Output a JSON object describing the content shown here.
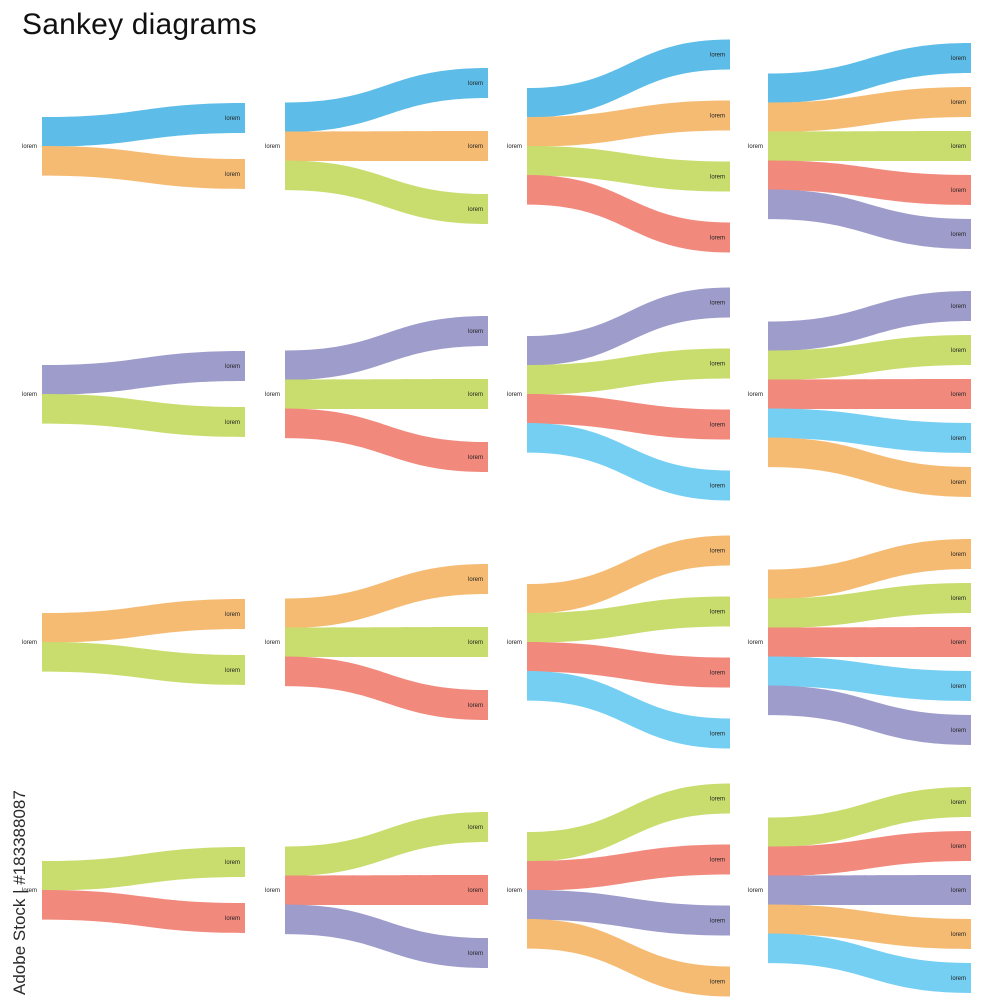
{
  "title": "Sankey diagrams",
  "watermark_text": "Adobe Stock | #183388087",
  "colors": {
    "blue": "#5dbde8",
    "orange": "#f6bb73",
    "green": "#c8dd6d",
    "red": "#f2897d",
    "purple": "#9d9ccb",
    "sky": "#74cff3"
  },
  "diagrams": [
    {
      "source_label": "lorem",
      "flows": [
        {
          "color": "blue",
          "label": "lorem"
        },
        {
          "color": "orange",
          "label": "lorem"
        }
      ]
    },
    {
      "source_label": "lorem",
      "flows": [
        {
          "color": "blue",
          "label": "lorem"
        },
        {
          "color": "orange",
          "label": "lorem"
        },
        {
          "color": "green",
          "label": "lorem"
        }
      ]
    },
    {
      "source_label": "lorem",
      "flows": [
        {
          "color": "blue",
          "label": "lorem"
        },
        {
          "color": "orange",
          "label": "lorem"
        },
        {
          "color": "green",
          "label": "lorem"
        },
        {
          "color": "red",
          "label": "lorem"
        }
      ]
    },
    {
      "source_label": "lorem",
      "flows": [
        {
          "color": "blue",
          "label": "lorem"
        },
        {
          "color": "orange",
          "label": "lorem"
        },
        {
          "color": "green",
          "label": "lorem"
        },
        {
          "color": "red",
          "label": "lorem"
        },
        {
          "color": "purple",
          "label": "lorem"
        }
      ]
    },
    {
      "source_label": "lorem",
      "flows": [
        {
          "color": "purple",
          "label": "lorem"
        },
        {
          "color": "green",
          "label": "lorem"
        }
      ]
    },
    {
      "source_label": "lorem",
      "flows": [
        {
          "color": "purple",
          "label": "lorem"
        },
        {
          "color": "green",
          "label": "lorem"
        },
        {
          "color": "red",
          "label": "lorem"
        }
      ]
    },
    {
      "source_label": "lorem",
      "flows": [
        {
          "color": "purple",
          "label": "lorem"
        },
        {
          "color": "green",
          "label": "lorem"
        },
        {
          "color": "red",
          "label": "lorem"
        },
        {
          "color": "sky",
          "label": "lorem"
        }
      ]
    },
    {
      "source_label": "lorem",
      "flows": [
        {
          "color": "purple",
          "label": "lorem"
        },
        {
          "color": "green",
          "label": "lorem"
        },
        {
          "color": "red",
          "label": "lorem"
        },
        {
          "color": "sky",
          "label": "lorem"
        },
        {
          "color": "orange",
          "label": "lorem"
        }
      ]
    },
    {
      "source_label": "lorem",
      "flows": [
        {
          "color": "orange",
          "label": "lorem"
        },
        {
          "color": "green",
          "label": "lorem"
        }
      ]
    },
    {
      "source_label": "lorem",
      "flows": [
        {
          "color": "orange",
          "label": "lorem"
        },
        {
          "color": "green",
          "label": "lorem"
        },
        {
          "color": "red",
          "label": "lorem"
        }
      ]
    },
    {
      "source_label": "lorem",
      "flows": [
        {
          "color": "orange",
          "label": "lorem"
        },
        {
          "color": "green",
          "label": "lorem"
        },
        {
          "color": "red",
          "label": "lorem"
        },
        {
          "color": "sky",
          "label": "lorem"
        }
      ]
    },
    {
      "source_label": "lorem",
      "flows": [
        {
          "color": "orange",
          "label": "lorem"
        },
        {
          "color": "green",
          "label": "lorem"
        },
        {
          "color": "red",
          "label": "lorem"
        },
        {
          "color": "sky",
          "label": "lorem"
        },
        {
          "color": "purple",
          "label": "lorem"
        }
      ]
    },
    {
      "source_label": "lorem",
      "flows": [
        {
          "color": "green",
          "label": "lorem"
        },
        {
          "color": "red",
          "label": "lorem"
        }
      ]
    },
    {
      "source_label": "lorem",
      "flows": [
        {
          "color": "green",
          "label": "lorem"
        },
        {
          "color": "red",
          "label": "lorem"
        },
        {
          "color": "purple",
          "label": "lorem"
        }
      ]
    },
    {
      "source_label": "lorem",
      "flows": [
        {
          "color": "green",
          "label": "lorem"
        },
        {
          "color": "red",
          "label": "lorem"
        },
        {
          "color": "purple",
          "label": "lorem"
        },
        {
          "color": "orange",
          "label": "lorem"
        }
      ]
    },
    {
      "source_label": "lorem",
      "flows": [
        {
          "color": "green",
          "label": "lorem"
        },
        {
          "color": "red",
          "label": "lorem"
        },
        {
          "color": "purple",
          "label": "lorem"
        },
        {
          "color": "orange",
          "label": "lorem"
        },
        {
          "color": "sky",
          "label": "lorem"
        }
      ]
    }
  ]
}
